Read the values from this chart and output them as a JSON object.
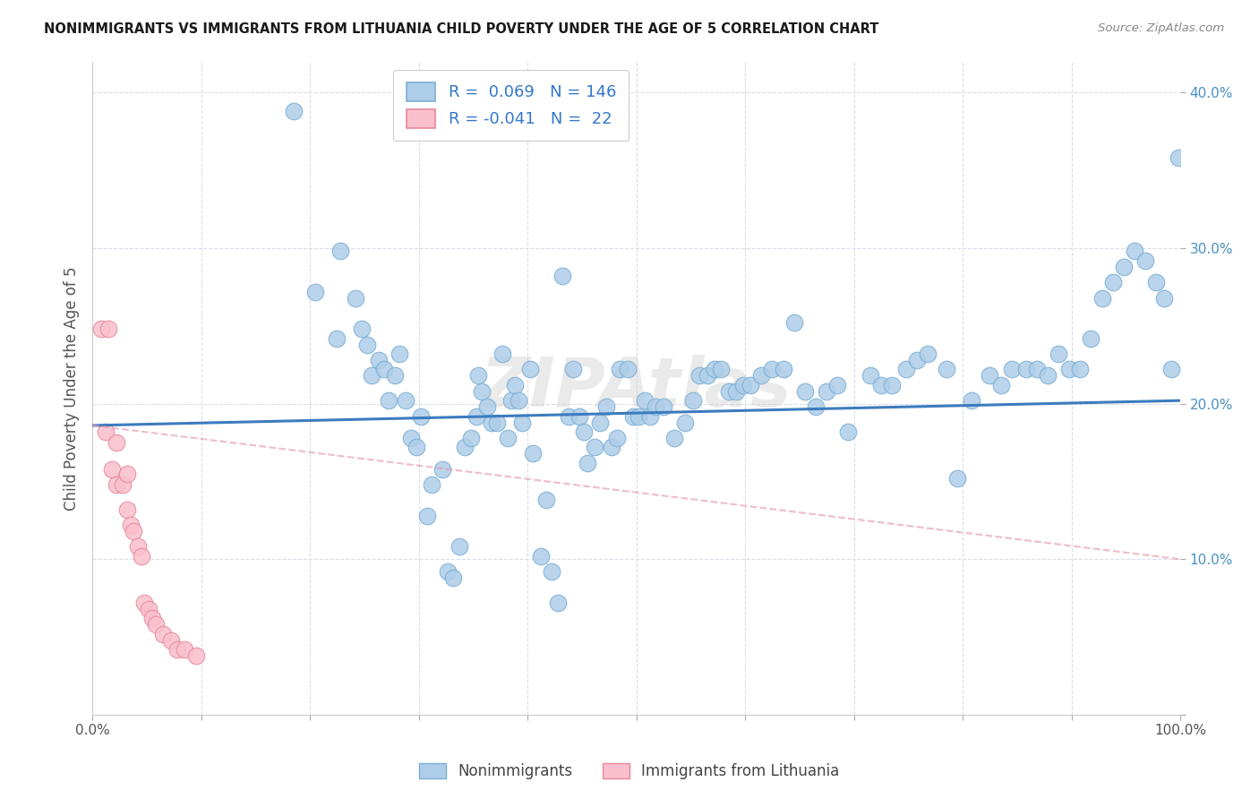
{
  "title": "NONIMMIGRANTS VS IMMIGRANTS FROM LITHUANIA CHILD POVERTY UNDER THE AGE OF 5 CORRELATION CHART",
  "source": "Source: ZipAtlas.com",
  "ylabel": "Child Poverty Under the Age of 5",
  "xlim": [
    0,
    1.0
  ],
  "ylim": [
    0,
    0.42
  ],
  "xticks": [
    0.0,
    0.1,
    0.2,
    0.3,
    0.4,
    0.5,
    0.6,
    0.7,
    0.8,
    0.9,
    1.0
  ],
  "yticks": [
    0.0,
    0.1,
    0.2,
    0.3,
    0.4
  ],
  "yticklabels": [
    "",
    "10.0%",
    "20.0%",
    "30.0%",
    "40.0%"
  ],
  "blue_R": 0.069,
  "blue_N": 146,
  "pink_R": -0.041,
  "pink_N": 22,
  "blue_color": "#aecde8",
  "blue_edge": "#7aafd4",
  "pink_color": "#f9bfcc",
  "pink_edge": "#e8879a",
  "blue_line_color": "#3d7bbf",
  "pink_line_color": "#e8a0b4",
  "watermark": "ZIPAtlas",
  "legend_label_blue": "Nonimmigrants",
  "legend_label_pink": "Immigrants from Lithuania",
  "blue_line_x0": 0.0,
  "blue_line_x1": 1.0,
  "blue_line_y0": 0.186,
  "blue_line_y1": 0.202,
  "pink_line_x0": 0.0,
  "pink_line_x1": 1.0,
  "pink_line_y0": 0.186,
  "pink_line_y1": 0.1,
  "blue_x": [
    0.185,
    0.205,
    0.225,
    0.228,
    0.242,
    0.248,
    0.253,
    0.257,
    0.263,
    0.268,
    0.272,
    0.278,
    0.282,
    0.288,
    0.293,
    0.298,
    0.302,
    0.308,
    0.312,
    0.322,
    0.327,
    0.332,
    0.337,
    0.342,
    0.348,
    0.353,
    0.355,
    0.358,
    0.363,
    0.367,
    0.372,
    0.377,
    0.382,
    0.385,
    0.388,
    0.392,
    0.395,
    0.402,
    0.405,
    0.412,
    0.417,
    0.422,
    0.428,
    0.432,
    0.438,
    0.442,
    0.448,
    0.452,
    0.455,
    0.462,
    0.467,
    0.472,
    0.477,
    0.482,
    0.485,
    0.492,
    0.497,
    0.502,
    0.508,
    0.513,
    0.518,
    0.525,
    0.535,
    0.545,
    0.552,
    0.558,
    0.565,
    0.572,
    0.578,
    0.585,
    0.592,
    0.598,
    0.605,
    0.615,
    0.625,
    0.635,
    0.645,
    0.655,
    0.665,
    0.675,
    0.685,
    0.695,
    0.715,
    0.725,
    0.735,
    0.748,
    0.758,
    0.768,
    0.785,
    0.795,
    0.808,
    0.825,
    0.835,
    0.845,
    0.858,
    0.868,
    0.878,
    0.888,
    0.898,
    0.908,
    0.918,
    0.928,
    0.938,
    0.948,
    0.958,
    0.968,
    0.978,
    0.985,
    0.992,
    0.998
  ],
  "blue_y": [
    0.388,
    0.272,
    0.242,
    0.298,
    0.268,
    0.248,
    0.238,
    0.218,
    0.228,
    0.222,
    0.202,
    0.218,
    0.232,
    0.202,
    0.178,
    0.172,
    0.192,
    0.128,
    0.148,
    0.158,
    0.092,
    0.088,
    0.108,
    0.172,
    0.178,
    0.192,
    0.218,
    0.208,
    0.198,
    0.188,
    0.188,
    0.232,
    0.178,
    0.202,
    0.212,
    0.202,
    0.188,
    0.222,
    0.168,
    0.102,
    0.138,
    0.092,
    0.072,
    0.282,
    0.192,
    0.222,
    0.192,
    0.182,
    0.162,
    0.172,
    0.188,
    0.198,
    0.172,
    0.178,
    0.222,
    0.222,
    0.192,
    0.192,
    0.202,
    0.192,
    0.198,
    0.198,
    0.178,
    0.188,
    0.202,
    0.218,
    0.218,
    0.222,
    0.222,
    0.208,
    0.208,
    0.212,
    0.212,
    0.218,
    0.222,
    0.222,
    0.252,
    0.208,
    0.198,
    0.208,
    0.212,
    0.182,
    0.218,
    0.212,
    0.212,
    0.222,
    0.228,
    0.232,
    0.222,
    0.152,
    0.202,
    0.218,
    0.212,
    0.222,
    0.222,
    0.222,
    0.218,
    0.232,
    0.222,
    0.222,
    0.242,
    0.268,
    0.278,
    0.288,
    0.298,
    0.292,
    0.278,
    0.268,
    0.222,
    0.358
  ],
  "pink_x": [
    0.008,
    0.012,
    0.018,
    0.022,
    0.028,
    0.032,
    0.035,
    0.038,
    0.042,
    0.045,
    0.048,
    0.052,
    0.055,
    0.058,
    0.065,
    0.072,
    0.078,
    0.085,
    0.095,
    0.015,
    0.022,
    0.032
  ],
  "pink_y": [
    0.248,
    0.182,
    0.158,
    0.148,
    0.148,
    0.132,
    0.122,
    0.118,
    0.108,
    0.102,
    0.072,
    0.068,
    0.062,
    0.058,
    0.052,
    0.048,
    0.042,
    0.042,
    0.038,
    0.248,
    0.175,
    0.155
  ]
}
